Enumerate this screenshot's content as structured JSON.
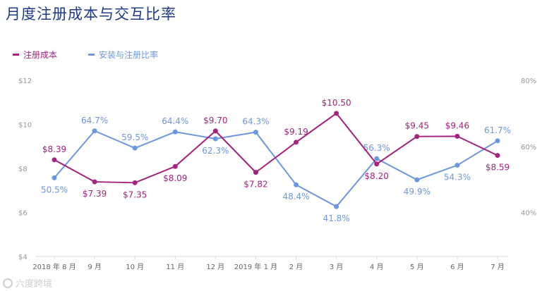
{
  "chart_data": {
    "type": "line",
    "title": "月度注册成本与交互比率",
    "categories": [
      "2018 年 8 月",
      "9 月",
      "10 月",
      "11 月",
      "12 月",
      "2019 年 1 月",
      "2 月",
      "3 月",
      "4 月",
      "5 月",
      "6 月",
      "7 月"
    ],
    "left_axis": {
      "ticks": [
        "$4",
        "$6",
        "$8",
        "$10",
        "$12"
      ],
      "range": [
        4,
        12
      ]
    },
    "right_axis": {
      "ticks": [
        "40%",
        "60%",
        "80%"
      ],
      "range": [
        26.7,
        80
      ]
    },
    "series": [
      {
        "name": "注册成本",
        "axis": "left",
        "color": "#a3237e",
        "values": [
          8.39,
          7.39,
          7.35,
          8.09,
          9.7,
          7.82,
          9.19,
          10.5,
          8.2,
          9.45,
          9.46,
          8.59
        ],
        "labels": [
          "$8.39",
          "$7.39",
          "$7.35",
          "$8.09",
          "$9.70",
          "$7.82",
          "$9.19",
          "$10.50",
          "$8.20",
          "$9.45",
          "$9.46",
          "$8.59"
        ]
      },
      {
        "name": "安装与注册比率",
        "axis": "right",
        "color": "#6b97e0",
        "values": [
          50.5,
          64.7,
          59.5,
          64.4,
          62.3,
          64.3,
          48.4,
          41.8,
          56.3,
          49.9,
          54.3,
          61.7
        ],
        "labels": [
          "50.5%",
          "64.7%",
          "59.5%",
          "64.4%",
          "62.3%",
          "64.3%",
          "48.4%",
          "41.8%",
          "56.3%",
          "49.9%",
          "54.3%",
          "61.7%"
        ]
      }
    ]
  },
  "watermark": "六度跨境"
}
